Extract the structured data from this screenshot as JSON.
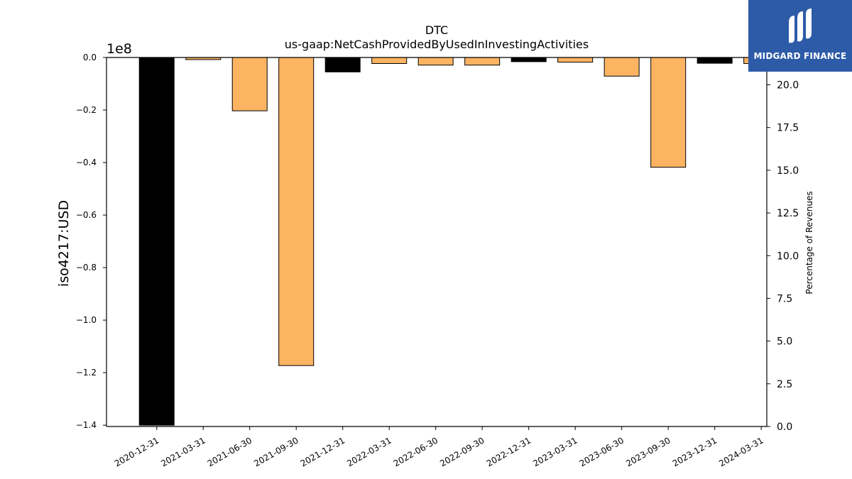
{
  "chart_data": {
    "type": "bar",
    "title": "DTC",
    "subtitle": "us-gaap:NetCashProvidedByUsedInInvestingActivities",
    "ylabel": "iso4217:USD",
    "y_offset_label": "1e8",
    "y2label": "Percentage of Revenues",
    "categories": [
      "2020-12-31",
      "2021-03-31",
      "2021-06-30",
      "2021-09-30",
      "2021-12-31",
      "2022-03-31",
      "2022-06-30",
      "2022-09-30",
      "2022-12-31",
      "2023-03-31",
      "2023-06-30",
      "2023-09-30",
      "2023-12-31",
      "2024-03-31"
    ],
    "values": [
      -140000000,
      -800000,
      -20300000,
      -117300000,
      -5500000,
      -2300000,
      -2900000,
      -2900000,
      -1600000,
      -1800000,
      -7100000,
      -41800000,
      -2200000,
      -2300000
    ],
    "bar_colors": [
      "#000000",
      "#fdb462",
      "#fdb462",
      "#fdb462",
      "#000000",
      "#fdb462",
      "#fdb462",
      "#fdb462",
      "#000000",
      "#fdb462",
      "#fdb462",
      "#fdb462",
      "#000000",
      "#fdb462"
    ],
    "ylim": [
      -140500000,
      0
    ],
    "yticks": [
      0.0,
      -0.2,
      -0.4,
      -0.6,
      -0.8,
      -1.0,
      -1.2,
      -1.4
    ],
    "ytick_labels": [
      "0.0",
      "−0.2",
      "−0.4",
      "−0.6",
      "−0.8",
      "−1.0",
      "−1.2",
      "−1.4"
    ],
    "y2lim": [
      0,
      21.6
    ],
    "y2ticks": [
      0,
      2.5,
      5.0,
      7.5,
      10.0,
      12.5,
      15.0,
      17.5,
      20.0
    ],
    "y2tick_labels": [
      "0.0",
      "2.5",
      "5.0",
      "7.5",
      "10.0",
      "12.5",
      "15.0",
      "17.5",
      "20.0"
    ],
    "grid": false
  },
  "logo": {
    "text": "MIDGARD FINANCE",
    "bg_color": "#2d5ba8"
  }
}
